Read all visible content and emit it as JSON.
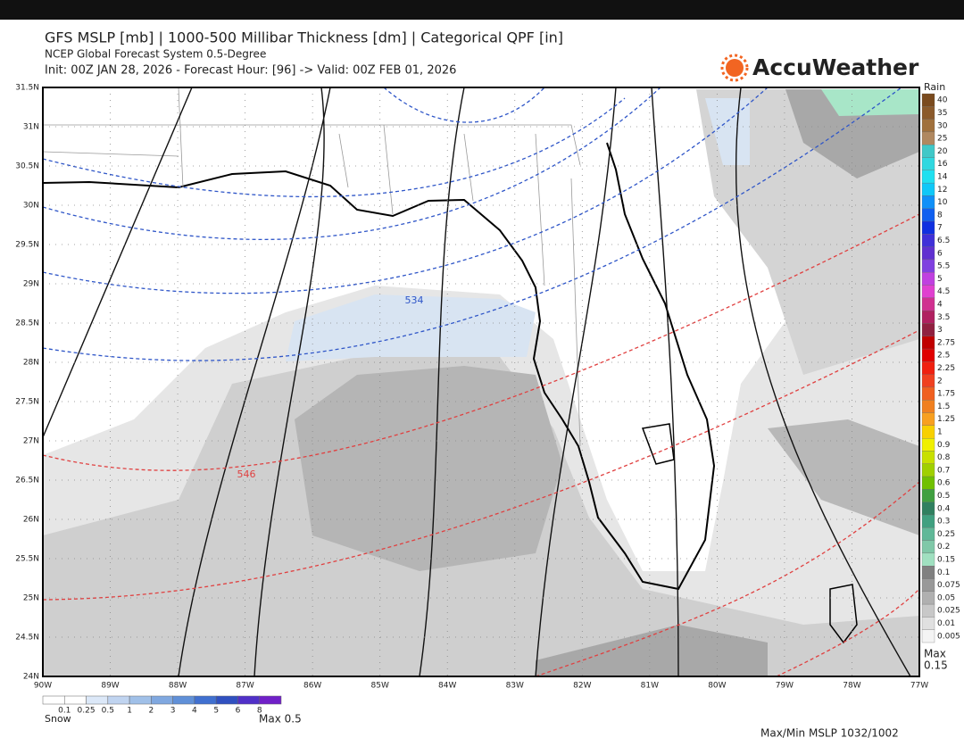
{
  "header": {
    "title": "GFS MSLP [mb] | 1000-500 Millibar Thickness [dm] | Categorical QPF [in]",
    "subtitle": "NCEP Global Forecast System 0.5-Degree",
    "init": "Init: 00Z JAN 28, 2026 - Forecast Hour: [96] -> Valid: 00Z FEB 01, 2026",
    "brand": "AccuWeather"
  },
  "map": {
    "lat_labels": [
      "31.5N",
      "31N",
      "30.5N",
      "30N",
      "29.5N",
      "29N",
      "28.5N",
      "28N",
      "27.5N",
      "27N",
      "26.5N",
      "26N",
      "25.5N",
      "25N",
      "24.5N",
      "24N"
    ],
    "lon_labels": [
      "90W",
      "89W",
      "88W",
      "87W",
      "86W",
      "85W",
      "84W",
      "83W",
      "82W",
      "81W",
      "80W",
      "79W",
      "78W",
      "77W"
    ],
    "contour_labels": [
      "534",
      "546"
    ]
  },
  "rain_scale": {
    "title": "Rain",
    "labels": [
      "40",
      "35",
      "30",
      "25",
      "20",
      "16",
      "14",
      "12",
      "10",
      "8",
      "7",
      "6.5",
      "6",
      "5.5",
      "5",
      "4.5",
      "4",
      "3.5",
      "3",
      "2.75",
      "2.5",
      "2.25",
      "2",
      "1.75",
      "1.5",
      "1.25",
      "1",
      "0.9",
      "0.8",
      "0.7",
      "0.6",
      "0.5",
      "0.4",
      "0.3",
      "0.25",
      "0.2",
      "0.15",
      "0.1",
      "0.075",
      "0.05",
      "0.025",
      "0.01",
      "0.005"
    ],
    "max": "Max",
    "max_value": "0.15"
  },
  "snow_scale": {
    "title": "Snow",
    "labels": [
      "0.1",
      "0.25",
      "0.5",
      "1",
      "2",
      "3",
      "4",
      "5",
      "6",
      "8"
    ],
    "max": "Max 0.5"
  },
  "footer": "Max/Min MSLP 1032/1002"
}
